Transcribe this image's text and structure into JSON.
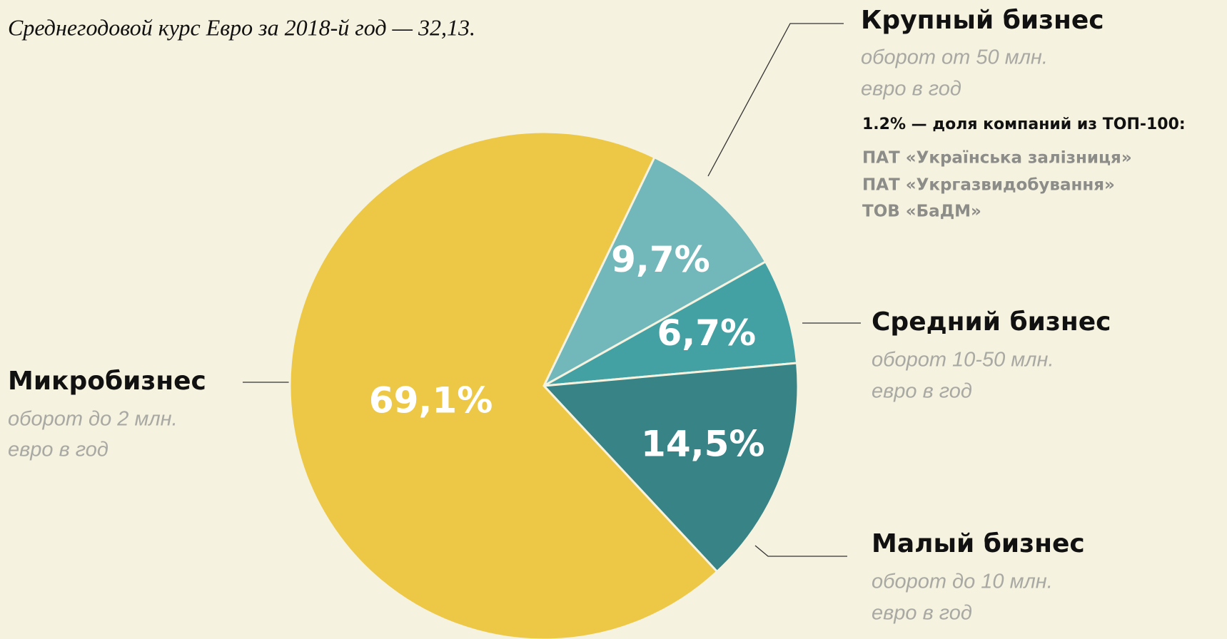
{
  "chart_data": {
    "type": "pie",
    "subtitle": "Среднегодовой курс Евро за 2018-й год — 32,13.",
    "categories": [
      "Крупный бизнес",
      "Средний бизнес",
      "Малый бизнес",
      "Микробизнес"
    ],
    "descriptions": [
      [
        "оборот от 50 млн.",
        "евро в год"
      ],
      [
        "оборот 10-50 млн.",
        "евро в год"
      ],
      [
        "оборот до 10 млн.",
        "евро в год"
      ],
      [
        "оборот до 2 млн.",
        "евро в год"
      ]
    ],
    "values": [
      9.7,
      6.7,
      14.5,
      69.1
    ],
    "value_labels": [
      "9,7%",
      "6,7%",
      "14,5%",
      "69,1%"
    ],
    "colors": [
      "#72b8bb",
      "#43a1a3",
      "#378385",
      "#edc846"
    ],
    "annotation": {
      "title": "1.2%  — доля компаний из ТОП-100:",
      "items": [
        "ПАТ «Українська залізниця»",
        "ПАТ «Укргазвидобування»",
        "ТОВ «БаДМ»"
      ]
    }
  }
}
